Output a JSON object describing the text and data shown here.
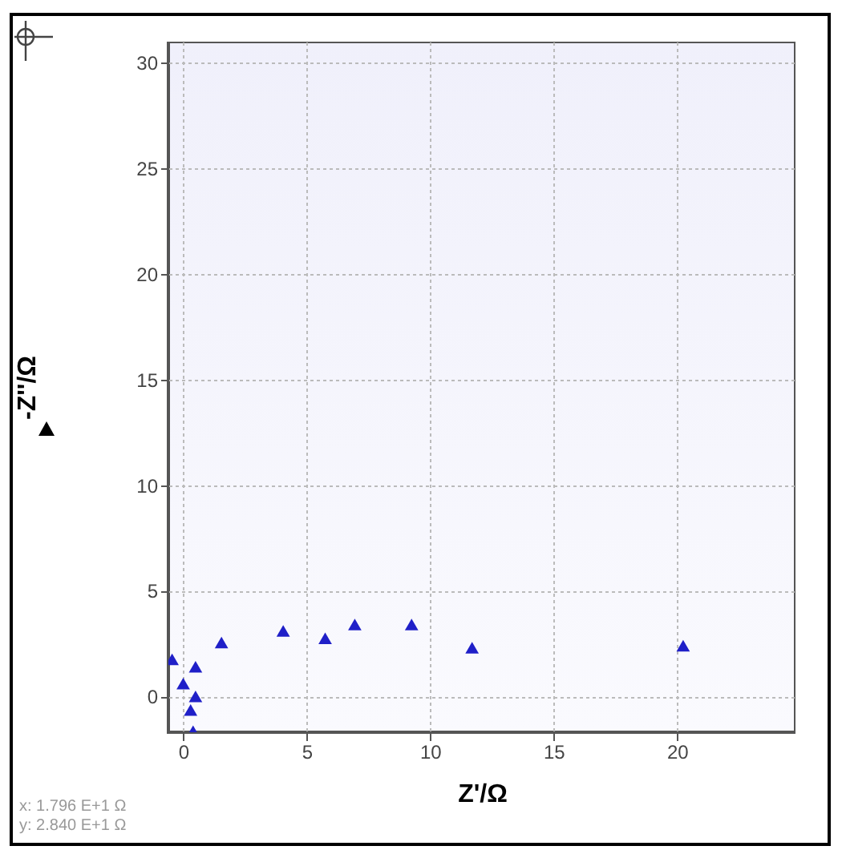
{
  "chart_data": {
    "type": "scatter",
    "xlabel": "Z'/Ω",
    "ylabel": "-Z''/Ω",
    "marker": "triangle",
    "grid": true,
    "x": [
      -0.45,
      0.0,
      0.5,
      0.5,
      0.3,
      0.4,
      1.55,
      4.05,
      5.75,
      6.95,
      9.25,
      11.7,
      20.25
    ],
    "series": [
      {
        "color": "#1f1fc8",
        "values": [
          1.75,
          0.6,
          1.4,
          0.0,
          -0.65,
          -1.65,
          2.55,
          3.1,
          2.75,
          3.4,
          3.4,
          2.3,
          2.4
        ]
      }
    ],
    "xlim": [
      -0.6,
      24.8
    ],
    "ylim": [
      -1.7,
      31
    ],
    "xticks": [
      0,
      5,
      10,
      15,
      20
    ],
    "yticks": [
      0,
      5,
      10,
      15,
      20,
      25,
      30
    ],
    "annotations": [
      "x: 1.796 E+1 Ω",
      "y: 2.840 E+1 Ω"
    ]
  }
}
